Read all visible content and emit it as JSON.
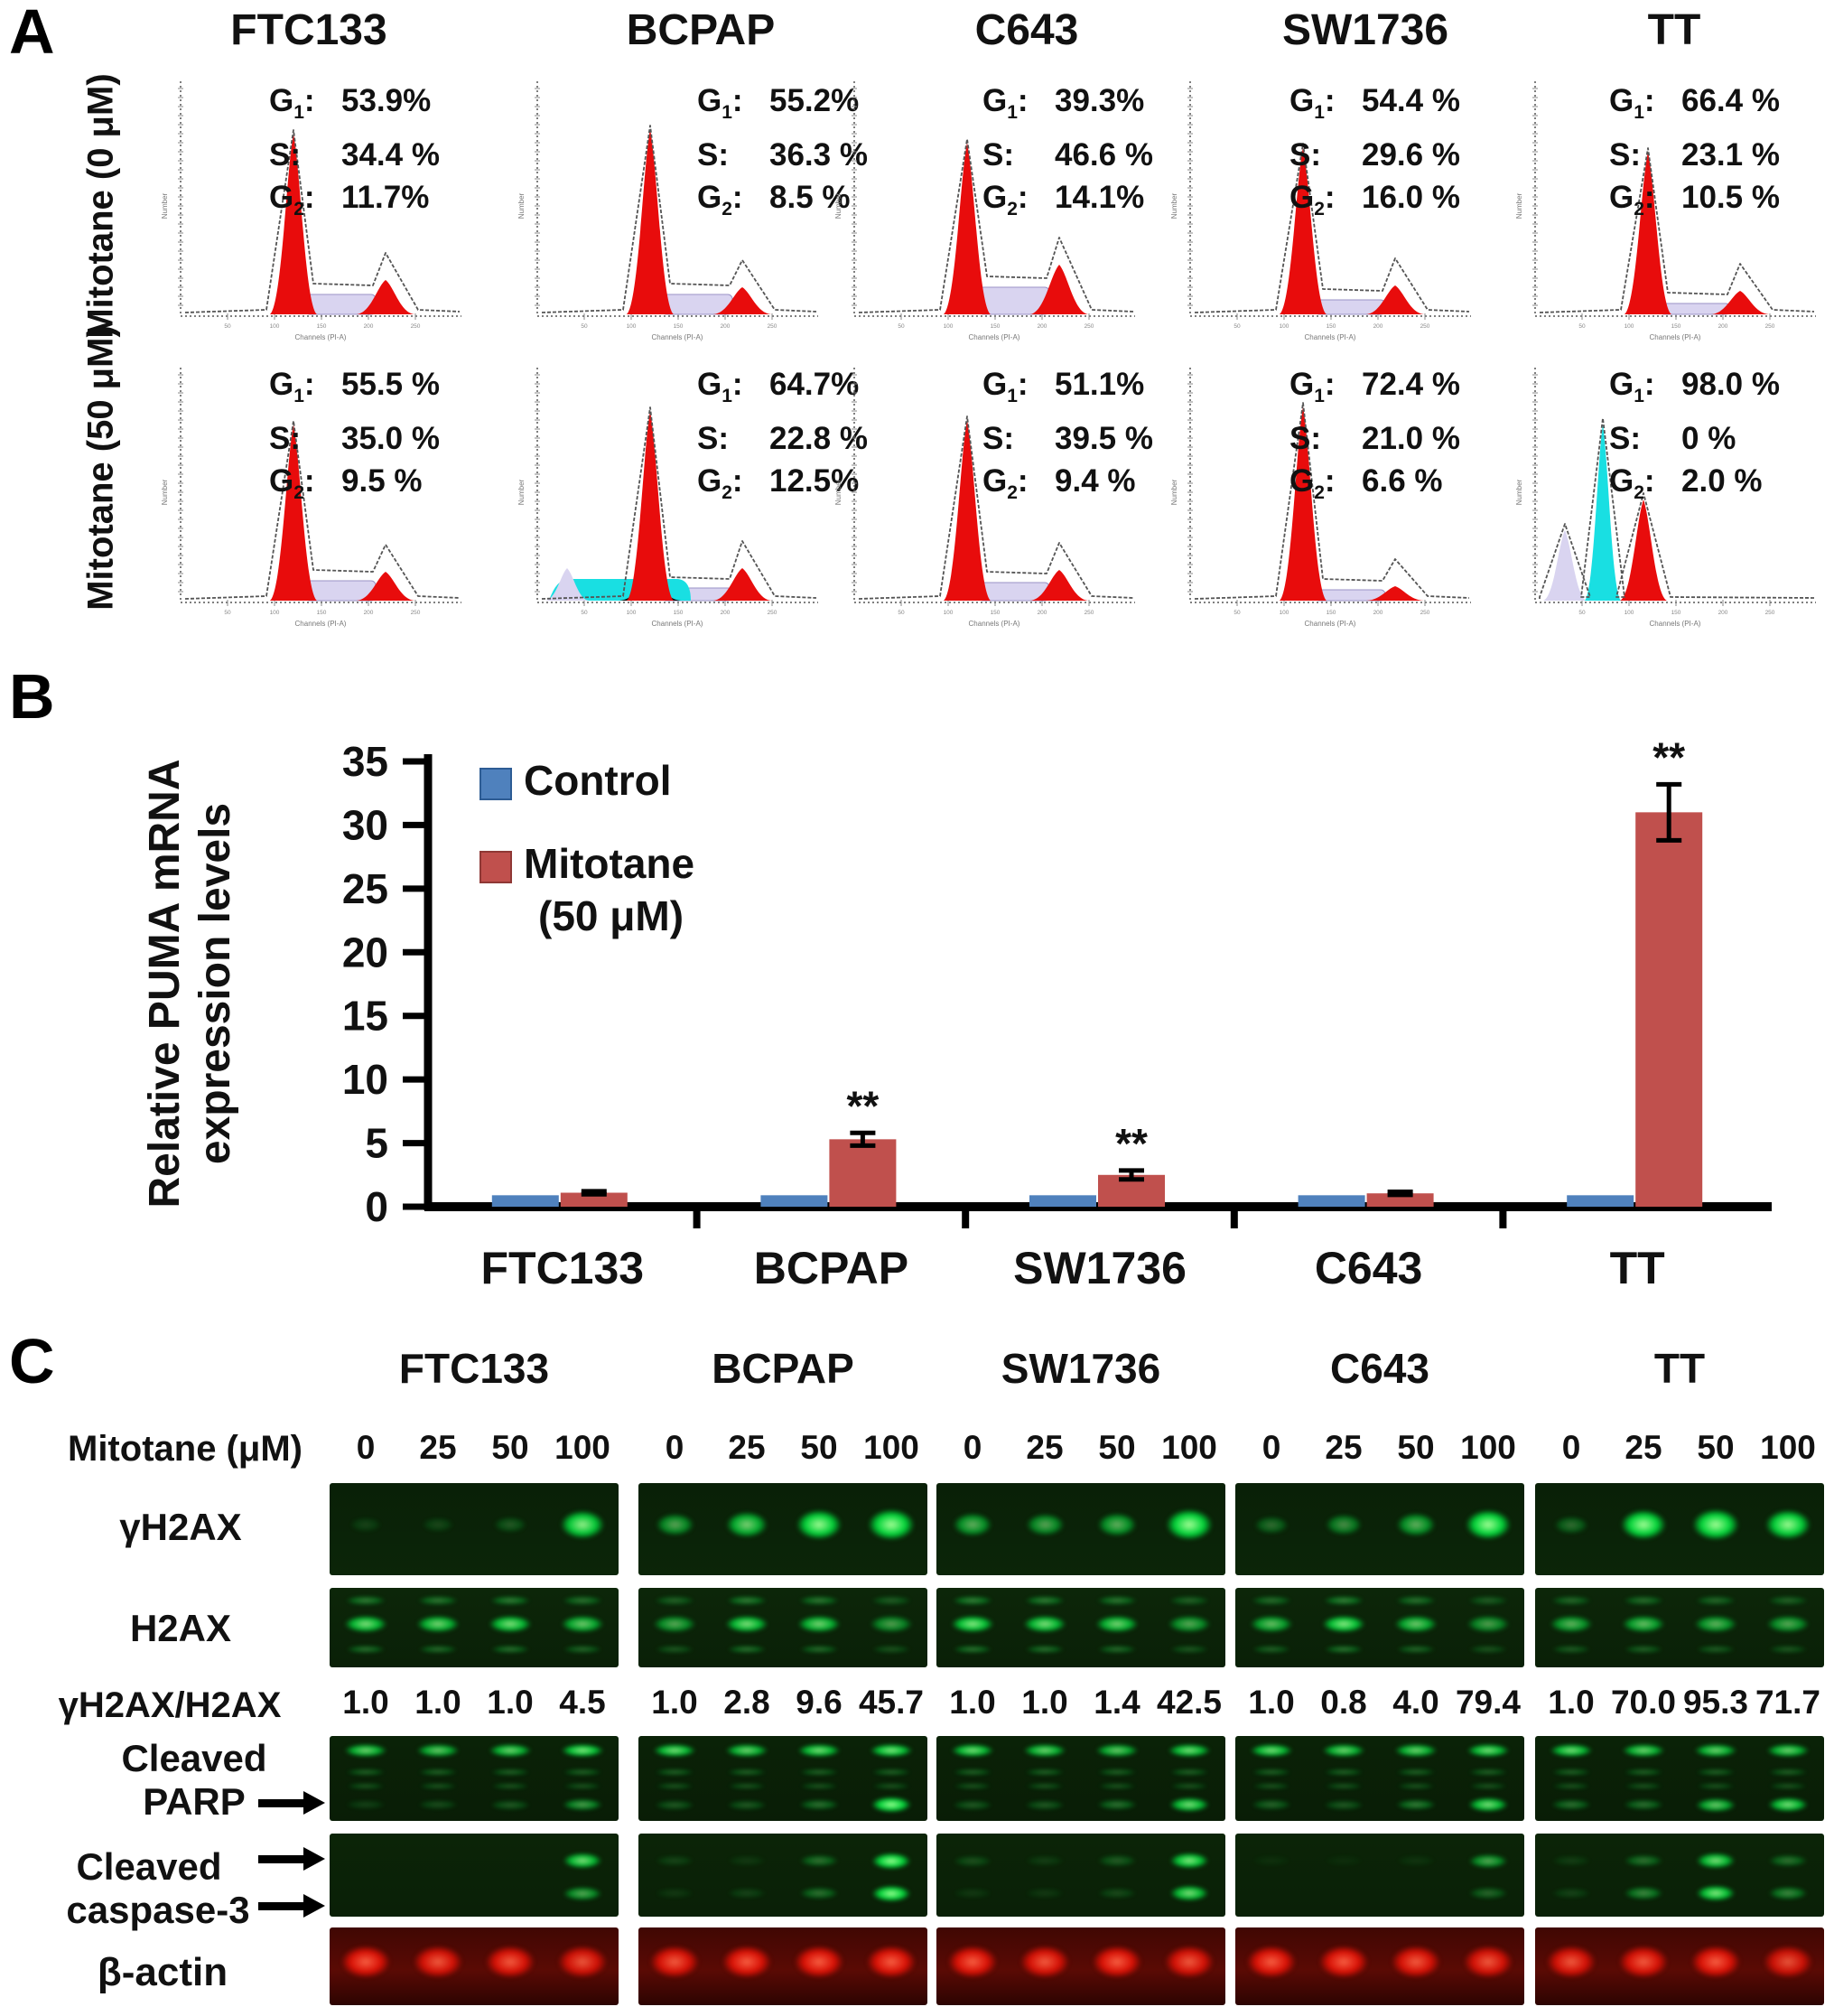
{
  "panel_a": {
    "label": "A",
    "row_labels": [
      "Mitotane (0 μM)",
      "Mitotane (50 μM)"
    ],
    "columns": [
      "FTC133",
      "BCPAP",
      "C643",
      "SW1736",
      "TT"
    ],
    "axis": {
      "x": "Channels (PI-A)",
      "y": "Number",
      "xticks": [
        "50",
        "100",
        "150",
        "200",
        "250"
      ]
    },
    "stat_labels": [
      {
        "base": "G",
        "sub": "1"
      },
      {
        "base": "S",
        "sub": ""
      },
      {
        "base": "G",
        "sub": "2"
      }
    ],
    "rows": [
      {
        "dose": "0 μM",
        "cells": [
          {
            "line": "FTC133",
            "g1": "53.9%",
            "s": "34.4 %",
            "g2": "11.7%",
            "shape": {
              "g1h": 200,
              "sh": 22,
              "g2h": 38
            }
          },
          {
            "line": "BCPAP",
            "g1": "55.2%",
            "s": "36.3 %",
            "g2": "8.5 %",
            "shape": {
              "g1h": 205,
              "sh": 22,
              "g2h": 30
            }
          },
          {
            "line": "C643",
            "g1": "39.3%",
            "s": "46.6 %",
            "g2": "14.1%",
            "shape": {
              "g1h": 190,
              "sh": 30,
              "g2h": 55
            }
          },
          {
            "line": "SW1736",
            "g1": "54.4 %",
            "s": "29.6 %",
            "g2": "16.0 %",
            "shape": {
              "g1h": 185,
              "sh": 16,
              "g2h": 32
            }
          },
          {
            "line": "TT",
            "g1": "66.4 %",
            "s": "23.1 %",
            "g2": "10.5 %",
            "shape": {
              "g1h": 180,
              "sh": 12,
              "g2h": 26
            }
          }
        ]
      },
      {
        "dose": "50 μM",
        "cells": [
          {
            "line": "FTC133",
            "g1": "55.5 %",
            "s": "35.0 %",
            "g2": "9.5 %",
            "shape": {
              "g1h": 195,
              "sh": 22,
              "g2h": 32
            }
          },
          {
            "line": "BCPAP",
            "g1": "64.7%",
            "s": "22.8 %",
            "g2": "12.5%",
            "shape": {
              "g1h": 210,
              "sh": 14,
              "g2h": 36
            },
            "extras": [
              {
                "c": "cyanband",
                "x1": 38,
                "x2": 195,
                "h": 24
              },
              {
                "c": "lav",
                "x": 58,
                "w": 24,
                "h": 36
              },
              {
                "c": "black",
                "x": 150,
                "w": 34,
                "h": 26
              }
            ]
          },
          {
            "line": "C643",
            "g1": "51.1%",
            "s": "39.5 %",
            "g2": "9.4 %",
            "shape": {
              "g1h": 200,
              "sh": 20,
              "g2h": 34
            }
          },
          {
            "line": "SW1736",
            "g1": "72.4 %",
            "s": "21.0 %",
            "g2": "6.6 %",
            "shape": {
              "g1h": 215,
              "sh": 12,
              "g2h": 16
            }
          },
          {
            "line": "TT",
            "g1": "98.0 %",
            "s": "0 %",
            "g2": "2.0 %",
            "custom": [
              {
                "c": "lav",
                "x": 58,
                "w": 24,
                "h": 78
              },
              {
                "c": "cyan",
                "x": 100,
                "w": 20,
                "h": 195
              },
              {
                "c": "red",
                "x": 145,
                "w": 26,
                "h": 112
              }
            ]
          }
        ]
      }
    ]
  },
  "panel_b": {
    "label": "B"
  },
  "chart_data": {
    "type": "bar",
    "title": "",
    "categories": [
      "FTC133",
      "BCPAP",
      "SW1736",
      "C643",
      "TT"
    ],
    "series": [
      {
        "name": "Control",
        "color": "#4f81bd",
        "values": [
          0.9,
          0.9,
          0.9,
          0.9,
          0.9
        ]
      },
      {
        "name": "Mitotane (50 μM)",
        "color": "#c0504d",
        "values": [
          1.1,
          5.3,
          2.5,
          1.05,
          31.0
        ],
        "errors": [
          0.12,
          0.5,
          0.35,
          0.12,
          2.2
        ],
        "significance": [
          "",
          "**",
          "**",
          "",
          "**"
        ]
      }
    ],
    "xlabel": "",
    "ylabel": [
      "Relative PUMA mRNA",
      "expression levels"
    ],
    "ylim": [
      0,
      35
    ],
    "ytick_step": 5,
    "grid": false,
    "legend": {
      "position": "top-left",
      "entries": [
        "Control",
        "Mitotane",
        "(50 μM)"
      ]
    }
  },
  "panel_c": {
    "label": "C",
    "columns": [
      "FTC133",
      "BCPAP",
      "SW1736",
      "C643",
      "TT"
    ],
    "dose_label": "Mitotane (μM)",
    "doses": [
      "0",
      "25",
      "50",
      "100"
    ],
    "labels": {
      "yh2ax": "γH2AX",
      "h2ax": "H2AX",
      "ratio": "γH2AX/H2AX",
      "cleaved": "Cleaved",
      "parp": "PARP",
      "caspase": "caspase-3",
      "actin": "β-actin"
    },
    "ratios": [
      [
        "1.0",
        "1.0",
        "1.0",
        "4.5"
      ],
      [
        "1.0",
        "2.8",
        "9.6",
        "45.7"
      ],
      [
        "1.0",
        "1.0",
        "1.4",
        "42.5"
      ],
      [
        "1.0",
        "0.8",
        "4.0",
        "79.4"
      ],
      [
        "1.0",
        "70.0",
        "95.3",
        "71.7"
      ]
    ],
    "blots": {
      "yh2ax": [
        [
          0.06,
          0.08,
          0.16,
          0.85
        ],
        [
          0.5,
          0.7,
          0.9,
          1.0
        ],
        [
          0.55,
          0.5,
          0.55,
          1.0
        ],
        [
          0.25,
          0.4,
          0.55,
          0.95
        ],
        [
          0.25,
          0.95,
          1.0,
          0.9
        ]
      ],
      "h2ax": [
        [
          0.85,
          0.8,
          0.85,
          0.75
        ],
        [
          0.6,
          0.85,
          0.8,
          0.55
        ],
        [
          0.9,
          0.85,
          0.8,
          0.6
        ],
        [
          0.7,
          0.9,
          0.75,
          0.55
        ],
        [
          0.65,
          0.7,
          0.65,
          0.6
        ]
      ],
      "parp_top": [
        [
          0.8,
          0.75,
          0.8,
          0.9
        ],
        [
          0.85,
          0.8,
          0.85,
          0.9
        ],
        [
          0.85,
          0.8,
          0.75,
          0.85
        ],
        [
          0.85,
          0.8,
          0.8,
          0.85
        ],
        [
          0.85,
          0.8,
          0.8,
          0.8
        ]
      ],
      "parp_cleaved": [
        [
          0.15,
          0.2,
          0.25,
          0.55
        ],
        [
          0.25,
          0.25,
          0.35,
          1.0
        ],
        [
          0.25,
          0.25,
          0.35,
          0.85
        ],
        [
          0.3,
          0.25,
          0.4,
          0.85
        ],
        [
          0.35,
          0.35,
          0.75,
          0.85
        ]
      ],
      "casp_upper": [
        [
          0.0,
          0.0,
          0.0,
          0.85
        ],
        [
          0.15,
          0.1,
          0.35,
          1.0
        ],
        [
          0.2,
          0.12,
          0.25,
          0.9
        ],
        [
          0.06,
          0.05,
          0.08,
          0.6
        ],
        [
          0.12,
          0.35,
          0.85,
          0.35
        ]
      ],
      "casp_lower": [
        [
          0.0,
          0.0,
          0.0,
          0.6
        ],
        [
          0.1,
          0.15,
          0.35,
          1.0
        ],
        [
          0.1,
          0.1,
          0.18,
          0.85
        ],
        [
          0.0,
          0.0,
          0.0,
          0.3
        ],
        [
          0.15,
          0.45,
          0.9,
          0.45
        ]
      ],
      "actin": [
        [
          0.95,
          0.9,
          0.92,
          0.88
        ],
        [
          0.92,
          0.95,
          0.95,
          0.95
        ],
        [
          0.95,
          0.92,
          0.95,
          0.9
        ],
        [
          0.95,
          0.95,
          0.92,
          0.9
        ],
        [
          0.9,
          0.92,
          0.95,
          0.85
        ]
      ]
    }
  }
}
